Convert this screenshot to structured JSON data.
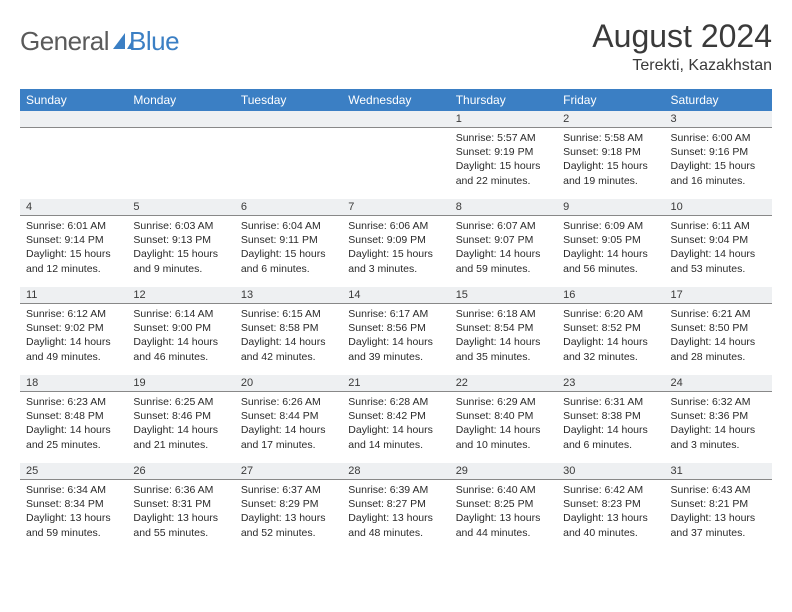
{
  "brand": {
    "general": "General",
    "blue": "Blue"
  },
  "title": {
    "month": "August 2024",
    "location": "Terekti, Kazakhstan"
  },
  "colors": {
    "header_bg": "#3b7fc4",
    "header_fg": "#ffffff",
    "daynum_bg": "#eef0f2",
    "daynum_border": "#888888",
    "text": "#2a2a2a",
    "logo_icon": "#3b7fc4"
  },
  "weekdays": [
    "Sunday",
    "Monday",
    "Tuesday",
    "Wednesday",
    "Thursday",
    "Friday",
    "Saturday"
  ],
  "grid": {
    "first_weekday_index": 4,
    "days_in_month": 31
  },
  "days": {
    "1": {
      "sunrise": "5:57 AM",
      "sunset": "9:19 PM",
      "daylight": "15 hours and 22 minutes."
    },
    "2": {
      "sunrise": "5:58 AM",
      "sunset": "9:18 PM",
      "daylight": "15 hours and 19 minutes."
    },
    "3": {
      "sunrise": "6:00 AM",
      "sunset": "9:16 PM",
      "daylight": "15 hours and 16 minutes."
    },
    "4": {
      "sunrise": "6:01 AM",
      "sunset": "9:14 PM",
      "daylight": "15 hours and 12 minutes."
    },
    "5": {
      "sunrise": "6:03 AM",
      "sunset": "9:13 PM",
      "daylight": "15 hours and 9 minutes."
    },
    "6": {
      "sunrise": "6:04 AM",
      "sunset": "9:11 PM",
      "daylight": "15 hours and 6 minutes."
    },
    "7": {
      "sunrise": "6:06 AM",
      "sunset": "9:09 PM",
      "daylight": "15 hours and 3 minutes."
    },
    "8": {
      "sunrise": "6:07 AM",
      "sunset": "9:07 PM",
      "daylight": "14 hours and 59 minutes."
    },
    "9": {
      "sunrise": "6:09 AM",
      "sunset": "9:05 PM",
      "daylight": "14 hours and 56 minutes."
    },
    "10": {
      "sunrise": "6:11 AM",
      "sunset": "9:04 PM",
      "daylight": "14 hours and 53 minutes."
    },
    "11": {
      "sunrise": "6:12 AM",
      "sunset": "9:02 PM",
      "daylight": "14 hours and 49 minutes."
    },
    "12": {
      "sunrise": "6:14 AM",
      "sunset": "9:00 PM",
      "daylight": "14 hours and 46 minutes."
    },
    "13": {
      "sunrise": "6:15 AM",
      "sunset": "8:58 PM",
      "daylight": "14 hours and 42 minutes."
    },
    "14": {
      "sunrise": "6:17 AM",
      "sunset": "8:56 PM",
      "daylight": "14 hours and 39 minutes."
    },
    "15": {
      "sunrise": "6:18 AM",
      "sunset": "8:54 PM",
      "daylight": "14 hours and 35 minutes."
    },
    "16": {
      "sunrise": "6:20 AM",
      "sunset": "8:52 PM",
      "daylight": "14 hours and 32 minutes."
    },
    "17": {
      "sunrise": "6:21 AM",
      "sunset": "8:50 PM",
      "daylight": "14 hours and 28 minutes."
    },
    "18": {
      "sunrise": "6:23 AM",
      "sunset": "8:48 PM",
      "daylight": "14 hours and 25 minutes."
    },
    "19": {
      "sunrise": "6:25 AM",
      "sunset": "8:46 PM",
      "daylight": "14 hours and 21 minutes."
    },
    "20": {
      "sunrise": "6:26 AM",
      "sunset": "8:44 PM",
      "daylight": "14 hours and 17 minutes."
    },
    "21": {
      "sunrise": "6:28 AM",
      "sunset": "8:42 PM",
      "daylight": "14 hours and 14 minutes."
    },
    "22": {
      "sunrise": "6:29 AM",
      "sunset": "8:40 PM",
      "daylight": "14 hours and 10 minutes."
    },
    "23": {
      "sunrise": "6:31 AM",
      "sunset": "8:38 PM",
      "daylight": "14 hours and 6 minutes."
    },
    "24": {
      "sunrise": "6:32 AM",
      "sunset": "8:36 PM",
      "daylight": "14 hours and 3 minutes."
    },
    "25": {
      "sunrise": "6:34 AM",
      "sunset": "8:34 PM",
      "daylight": "13 hours and 59 minutes."
    },
    "26": {
      "sunrise": "6:36 AM",
      "sunset": "8:31 PM",
      "daylight": "13 hours and 55 minutes."
    },
    "27": {
      "sunrise": "6:37 AM",
      "sunset": "8:29 PM",
      "daylight": "13 hours and 52 minutes."
    },
    "28": {
      "sunrise": "6:39 AM",
      "sunset": "8:27 PM",
      "daylight": "13 hours and 48 minutes."
    },
    "29": {
      "sunrise": "6:40 AM",
      "sunset": "8:25 PM",
      "daylight": "13 hours and 44 minutes."
    },
    "30": {
      "sunrise": "6:42 AM",
      "sunset": "8:23 PM",
      "daylight": "13 hours and 40 minutes."
    },
    "31": {
      "sunrise": "6:43 AM",
      "sunset": "8:21 PM",
      "daylight": "13 hours and 37 minutes."
    }
  },
  "labels": {
    "sunrise_prefix": "Sunrise: ",
    "sunset_prefix": "Sunset: ",
    "daylight_prefix": "Daylight: "
  }
}
